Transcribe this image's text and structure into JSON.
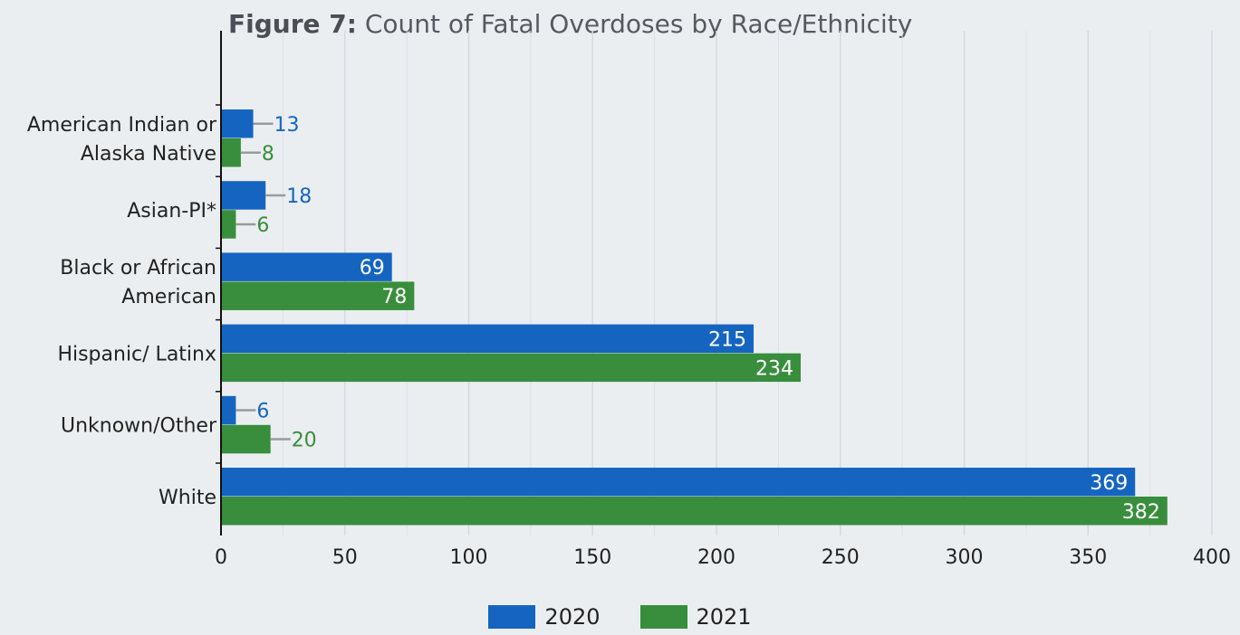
{
  "chart_data": {
    "type": "bar",
    "orientation": "horizontal",
    "title_prefix": "Figure 7:",
    "title": "Count of Fatal Overdoses by Race/Ethnicity",
    "categories": [
      [
        "American Indian or",
        "Alaska Native"
      ],
      [
        "Asian-PI*"
      ],
      [
        "Black or African",
        "American"
      ],
      [
        "Hispanic/ Latinx"
      ],
      [
        "Unknown/Other"
      ],
      [
        "White"
      ]
    ],
    "series": [
      {
        "name": "2020",
        "color": "#1565c0",
        "values": [
          13,
          18,
          69,
          215,
          6,
          369
        ]
      },
      {
        "name": "2021",
        "color": "#388e3c",
        "values": [
          8,
          6,
          78,
          234,
          20,
          382
        ]
      }
    ],
    "xlim": [
      0,
      400
    ],
    "xticks": [
      "0",
      "50",
      "100",
      "150",
      "200",
      "250",
      "300",
      "350",
      "400"
    ],
    "grid": true,
    "legend_position": "bottom"
  }
}
